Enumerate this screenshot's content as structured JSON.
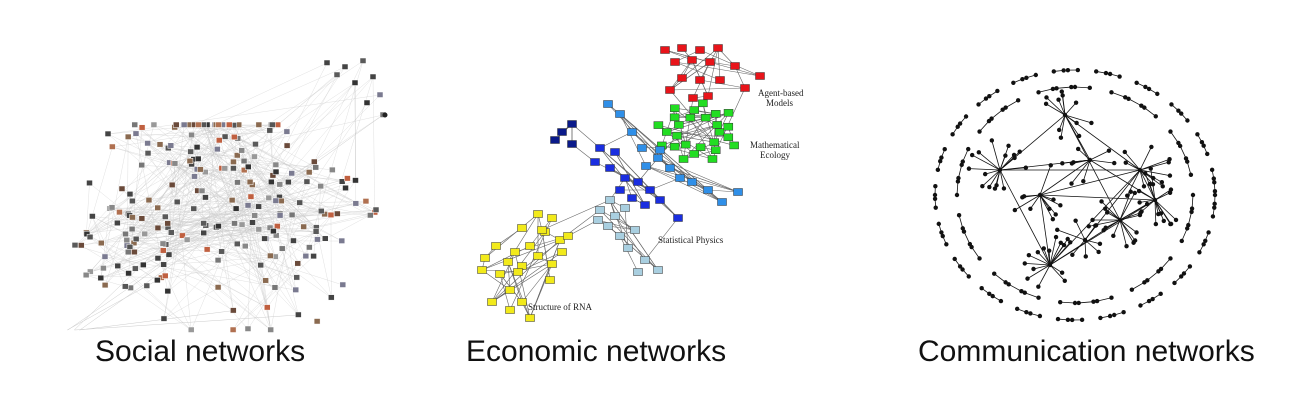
{
  "panels": [
    {
      "id": "social",
      "caption": "Social networks"
    },
    {
      "id": "economic",
      "caption": "Economic networks",
      "cluster_labels": {
        "agent": [
          "Agent-based",
          "Models"
        ],
        "ecology": [
          "Mathematical",
          "Ecology"
        ],
        "physics": "Statistical Physics",
        "rna": "Structure of RNA"
      },
      "colors": {
        "agent": "#e8141a",
        "ecology": "#22dd22",
        "navy": "#0a1a8a",
        "blue": "#1a2ee0",
        "lightblue": "#2f8fe8",
        "paleblue": "#a9cfe0",
        "rna": "#f2ea1a"
      }
    },
    {
      "id": "communication",
      "caption": "Communication networks"
    }
  ]
}
